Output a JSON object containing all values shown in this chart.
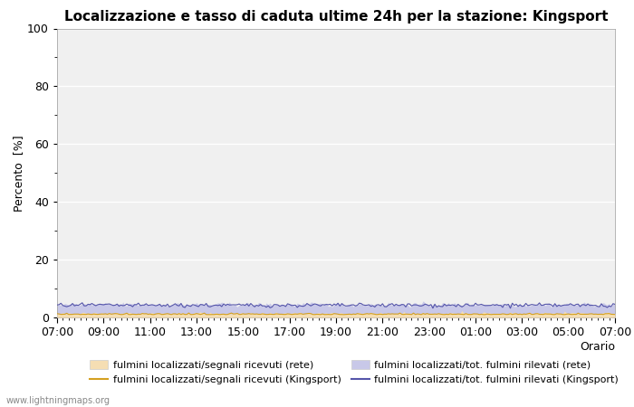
{
  "title": "Localizzazione e tasso di caduta ultime 24h per la stazione: Kingsport",
  "orario_label": "Orario",
  "ylabel": "Percento  [%]",
  "ylim": [
    0,
    100
  ],
  "yticks": [
    0,
    20,
    40,
    60,
    80,
    100
  ],
  "yticks_minor": [
    10,
    30,
    50,
    70,
    90
  ],
  "x_labels": [
    "07:00",
    "09:00",
    "11:00",
    "13:00",
    "15:00",
    "17:00",
    "19:00",
    "21:00",
    "23:00",
    "01:00",
    "03:00",
    "05:00",
    "07:00"
  ],
  "n_points": 289,
  "background_color": "#ffffff",
  "plot_bg_color": "#f0f0f0",
  "grid_color": "#ffffff",
  "fill_rete_segnali_color": "#f5deb3",
  "fill_rete_tot_color": "#c8c8e8",
  "line_kingsport_segnali_color": "#d4a020",
  "line_kingsport_tot_color": "#5555aa",
  "fill_rete_segnali_alpha": 1.0,
  "fill_rete_tot_alpha": 1.0,
  "watermark": "www.lightningmaps.org",
  "title_fontsize": 11,
  "axis_fontsize": 9,
  "legend_fontsize": 8
}
